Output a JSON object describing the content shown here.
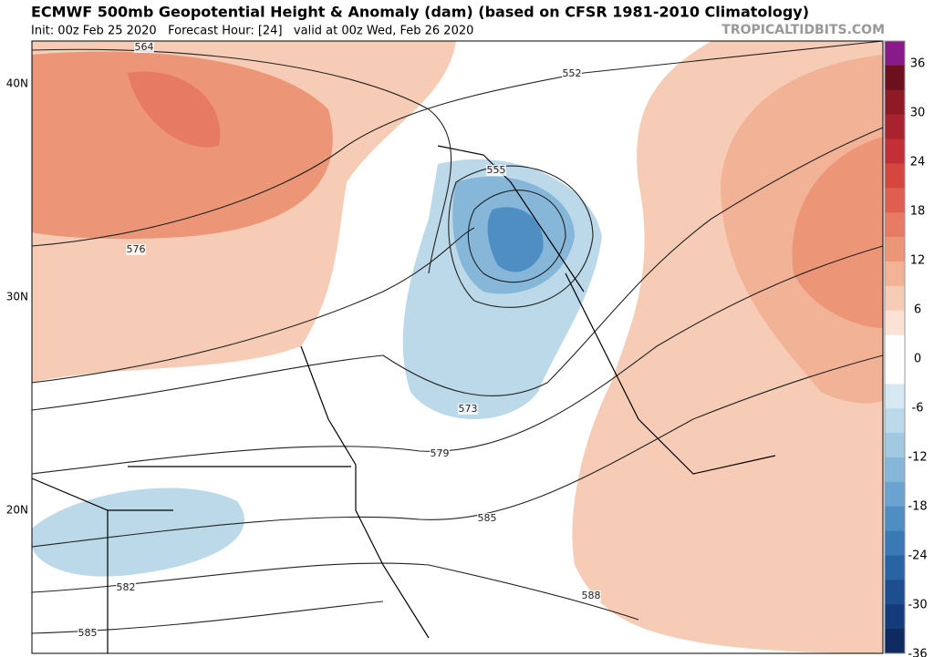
{
  "header": {
    "title": "ECMWF 500mb Geopotential Height & Anomaly (dam) (based on CFSR 1981-2010 Climatology)",
    "subtitle": "Init: 00z Feb 25 2020   Forecast Hour: [24]   valid at 00z Wed, Feb 26 2020",
    "credit": "TROPICALTIDBITS.COM"
  },
  "map": {
    "lat_labels": [
      "40N",
      "30N",
      "20N"
    ],
    "contour_labels": [
      "564",
      "552",
      "555",
      "576",
      "573",
      "579",
      "585",
      "582",
      "588",
      "585"
    ]
  },
  "colorbar": {
    "labels": [
      "36",
      "30",
      "24",
      "18",
      "12",
      "6",
      "0",
      "-6",
      "-12",
      "-18",
      "-24",
      "-30",
      "-36"
    ],
    "colors": [
      "#8b1a89",
      "#6e0f1e",
      "#8e1a26",
      "#a8232e",
      "#c22f37",
      "#d3473f",
      "#de5f4f",
      "#e67a62",
      "#ec9577",
      "#f2b296",
      "#f7ccb6",
      "#fbe2d5",
      "#ffffff",
      "#ffffff",
      "#d6e8f2",
      "#bcd9ea",
      "#a2c9e2",
      "#86b7d9",
      "#6aa3cf",
      "#4f8ec3",
      "#3b79b5",
      "#2a63a3",
      "#1d4e90",
      "#153b7a",
      "#0e2a60"
    ]
  }
}
